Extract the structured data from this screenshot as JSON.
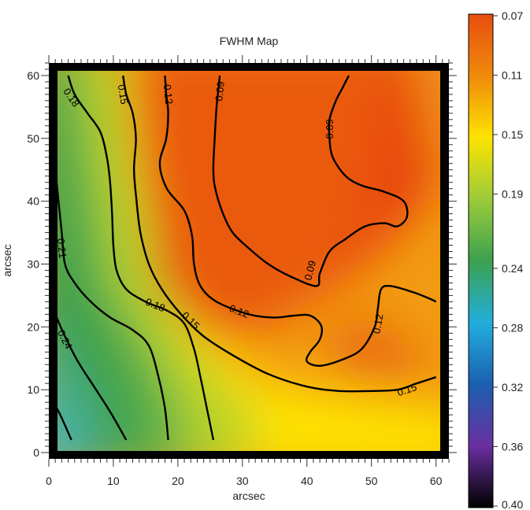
{
  "chart_data": {
    "type": "heatmap",
    "title": "FWHM Map",
    "xlabel": "arcsec",
    "ylabel": "arcsec",
    "xlim": [
      0,
      62
    ],
    "ylim": [
      -1,
      62
    ],
    "x_ticks": [
      0,
      10,
      20,
      30,
      40,
      50,
      60
    ],
    "y_ticks": [
      0,
      10,
      20,
      30,
      40,
      50,
      60
    ],
    "colorbar": {
      "ticks": [
        "0.07",
        "0.11",
        "0.15",
        "0.19",
        "0.24",
        "0.28",
        "0.32",
        "0.36",
        "0.40"
      ],
      "values": [
        0.07,
        0.11,
        0.15,
        0.19,
        0.24,
        0.28,
        0.32,
        0.36,
        0.4
      ],
      "colors": [
        "#e84e0f",
        "#f08a0c",
        "#fde300",
        "#9ccb3a",
        "#3ca14f",
        "#22aedc",
        "#1b5fb0",
        "#6a2fa0",
        "#000000"
      ]
    },
    "contours": [
      {
        "label": "0.09",
        "label_points": [
          [
            26.5,
            57.5
          ],
          [
            43.5,
            51.5
          ],
          [
            40.5,
            29.0
          ]
        ],
        "points": [
          [
            26.5,
            60
          ],
          [
            26.3,
            58
          ],
          [
            26.0,
            55
          ],
          [
            25.7,
            50
          ],
          [
            25.5,
            45
          ],
          [
            25.8,
            42
          ],
          [
            27.0,
            38
          ],
          [
            28.5,
            35
          ],
          [
            31.0,
            32.5
          ],
          [
            34.0,
            30.0
          ],
          [
            37.5,
            28.0
          ],
          [
            41.5,
            26.5
          ],
          [
            42.0,
            28.5
          ],
          [
            43.5,
            32.0
          ],
          [
            46.0,
            34.0
          ],
          [
            49.0,
            36.0
          ],
          [
            52.0,
            36.5
          ],
          [
            54.0,
            36.0
          ],
          [
            55.5,
            37.5
          ],
          [
            55.0,
            40.0
          ],
          [
            52.0,
            41.5
          ],
          [
            48.5,
            42.5
          ],
          [
            46.0,
            44.0
          ],
          [
            44.0,
            47.0
          ],
          [
            43.5,
            50.0
          ],
          [
            43.5,
            53.0
          ],
          [
            44.5,
            56.0
          ],
          [
            45.5,
            58.0
          ],
          [
            46.5,
            60.0
          ]
        ]
      },
      {
        "label": "0.12",
        "label_points": [
          [
            18.5,
            57.0
          ],
          [
            29.5,
            22.5
          ],
          [
            51.0,
            20.5
          ]
        ],
        "points": [
          [
            18.0,
            60
          ],
          [
            18.2,
            57
          ],
          [
            18.5,
            54
          ],
          [
            18.2,
            50
          ],
          [
            17.2,
            46
          ],
          [
            18.3,
            42
          ],
          [
            21.0,
            38.5
          ],
          [
            22.2,
            34.5
          ],
          [
            22.5,
            30.0
          ],
          [
            23.5,
            26.5
          ],
          [
            26.0,
            24.0
          ],
          [
            31.0,
            22.0
          ],
          [
            35.0,
            21.5
          ],
          [
            38.0,
            21.8
          ],
          [
            40.5,
            21.8
          ],
          [
            42.2,
            20.2
          ],
          [
            42.0,
            18.0
          ],
          [
            40.5,
            16.0
          ],
          [
            40.0,
            14.5
          ],
          [
            42.0,
            13.8
          ],
          [
            45.5,
            14.8
          ],
          [
            48.5,
            16.5
          ],
          [
            50.5,
            20.0
          ],
          [
            51.0,
            23.0
          ],
          [
            51.5,
            26.0
          ],
          [
            53.0,
            26.5
          ],
          [
            56.5,
            25.5
          ],
          [
            59.0,
            24.5
          ],
          [
            60.0,
            24.0
          ]
        ]
      },
      {
        "label": "0.15",
        "label_points": [
          [
            11.5,
            57.0
          ],
          [
            22.0,
            21.0
          ],
          [
            55.5,
            10.0
          ]
        ],
        "points": [
          [
            11.5,
            60
          ],
          [
            12.0,
            57
          ],
          [
            13.0,
            54
          ],
          [
            13.5,
            50
          ],
          [
            13.2,
            45
          ],
          [
            13.6,
            40
          ],
          [
            14.2,
            35
          ],
          [
            15.5,
            30
          ],
          [
            17.5,
            26.0
          ],
          [
            20.5,
            22.0
          ],
          [
            24.0,
            18.5
          ],
          [
            28.5,
            15.5
          ],
          [
            34.0,
            12.5
          ],
          [
            40.0,
            10.5
          ],
          [
            45.0,
            9.8
          ],
          [
            50.0,
            9.8
          ],
          [
            54.0,
            10.0
          ],
          [
            57.0,
            11.0
          ],
          [
            60.0,
            12.0
          ]
        ]
      },
      {
        "label": "0.18",
        "label_points": [
          [
            3.5,
            56.5
          ],
          [
            16.5,
            23.5
          ]
        ],
        "points": [
          [
            3.0,
            60
          ],
          [
            4.0,
            57
          ],
          [
            6.0,
            54
          ],
          [
            8.0,
            51
          ],
          [
            9.0,
            47
          ],
          [
            9.5,
            43
          ],
          [
            9.8,
            38
          ],
          [
            10.0,
            33
          ],
          [
            10.5,
            29
          ],
          [
            12.0,
            26
          ],
          [
            15.0,
            24
          ],
          [
            18.5,
            22.5
          ],
          [
            21.0,
            20.5
          ],
          [
            22.5,
            16.5
          ],
          [
            23.5,
            12.0
          ],
          [
            24.5,
            7.0
          ],
          [
            25.5,
            2.0
          ]
        ]
      },
      {
        "label": "0.21",
        "label_points": [
          [
            2.0,
            32.5
          ]
        ],
        "points": [
          [
            1.0,
            45
          ],
          [
            1.5,
            40
          ],
          [
            2.0,
            35
          ],
          [
            2.5,
            30
          ],
          [
            4.0,
            27
          ],
          [
            6.5,
            24
          ],
          [
            9.5,
            21.5
          ],
          [
            13.0,
            19.5
          ],
          [
            15.5,
            17.0
          ],
          [
            17.0,
            12.0
          ],
          [
            18.0,
            7.0
          ],
          [
            18.5,
            2.0
          ]
        ]
      },
      {
        "label": "0.24",
        "label_points": [
          [
            2.5,
            18.0
          ]
        ],
        "points": [
          [
            1.0,
            22.0
          ],
          [
            2.5,
            18.5
          ],
          [
            4.5,
            14.5
          ],
          [
            7.0,
            10.5
          ],
          [
            9.5,
            6.5
          ],
          [
            12.0,
            2.0
          ]
        ]
      },
      {
        "label": "",
        "label_points": [],
        "points": [
          [
            1.0,
            7.5
          ],
          [
            2.0,
            5.5
          ],
          [
            3.5,
            2.0
          ]
        ]
      }
    ]
  }
}
